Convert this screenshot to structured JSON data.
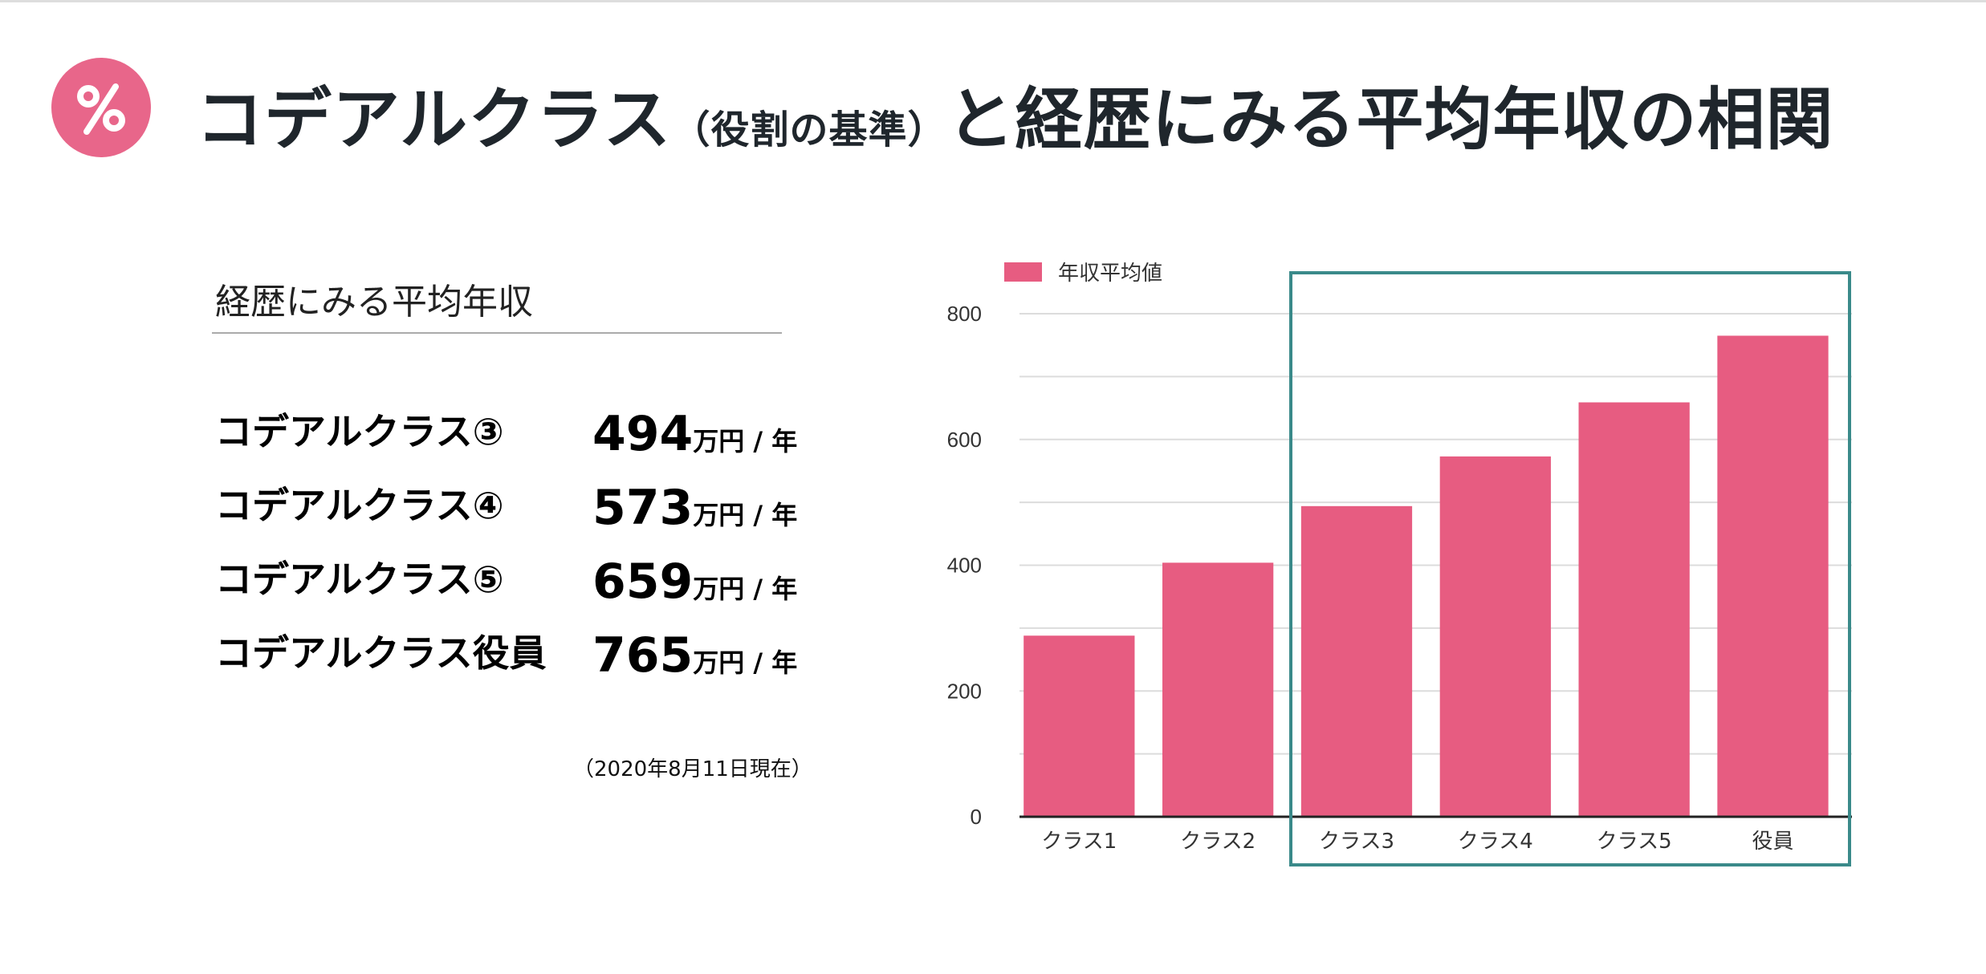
{
  "header": {
    "icon": "percent-icon",
    "title_main": "コデアルクラス",
    "title_paren": "（役割の基準）",
    "title_rest": "と経歴にみる平均年収の相関"
  },
  "panel": {
    "title": "経歴にみる平均年収",
    "rows": [
      {
        "label": "コデアルクラス③",
        "value": "494",
        "unit": "万円 / 年"
      },
      {
        "label": "コデアルクラス④",
        "value": "573",
        "unit": "万円 / 年"
      },
      {
        "label": "コデアルクラス⑤",
        "value": "659",
        "unit": "万円 / 年"
      },
      {
        "label": "コデアルクラス役員",
        "value": "765",
        "unit": "万円 / 年"
      }
    ],
    "note": "（2020年8月11日現在）"
  },
  "colors": {
    "bar": "#e75c81",
    "highlight_frame": "#3a8a8a",
    "title_text": "#1f262c"
  },
  "chart_data": {
    "type": "bar",
    "categories": [
      "クラス1",
      "クラス2",
      "クラス3",
      "クラス4",
      "クラス5",
      "役員"
    ],
    "series": [
      {
        "name": "年収平均値",
        "values": [
          288,
          404,
          494,
          573,
          659,
          765
        ]
      }
    ],
    "ylim": [
      0,
      800
    ],
    "yticks": [
      0,
      200,
      400,
      600,
      800
    ],
    "grid": true,
    "legend": "top-left",
    "highlight": [
      "クラス3",
      "クラス4",
      "クラス5",
      "役員"
    ]
  }
}
